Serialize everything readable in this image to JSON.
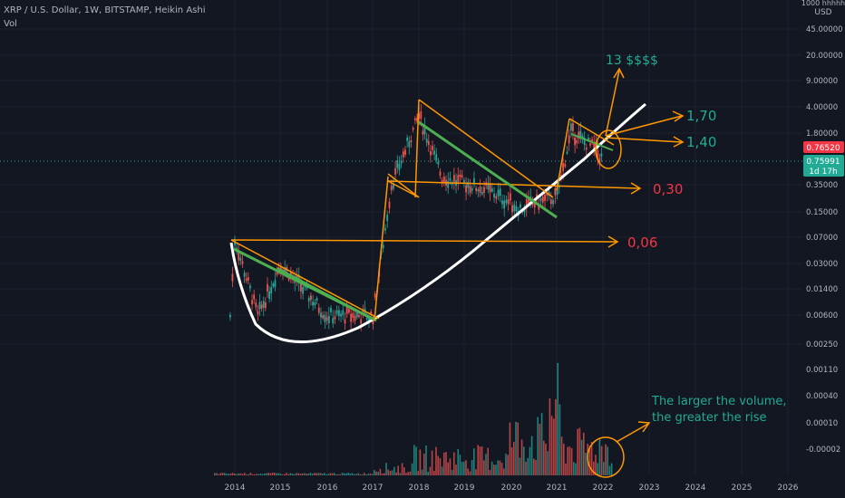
{
  "header": {
    "symbol_line": "XRP / U.S. Dollar, 1W, BITSTAMP, Heikin Ashi",
    "volume_label": "Vol"
  },
  "axis": {
    "unit_top": "1000 hhhhh",
    "unit": "USD",
    "price_ticks": [
      "45.00000",
      "20.00000",
      "9.00000",
      "4.00000",
      "1.80000",
      "0.35000",
      "0.15000",
      "0.07000",
      "0.03000",
      "0.01400",
      "0.00600",
      "0.00250"
    ],
    "volume_ticks": [
      "0.00110",
      "0.00040",
      "0.00010",
      "-0.00002"
    ],
    "year_ticks": [
      "2014",
      "2015",
      "2016",
      "2017",
      "2018",
      "2019",
      "2020",
      "2021",
      "2022",
      "2023",
      "2024",
      "2025",
      "2026"
    ]
  },
  "price_badges": {
    "last_price": "0.76520",
    "current_price": "0.75991",
    "countdown": "1d 17h"
  },
  "annotations": {
    "target_13": "13 $$$$",
    "level_170": "1,70",
    "level_140": "1,40",
    "level_030": "0,30",
    "level_006": "0,06",
    "volume_note_line1": "The larger the volume,",
    "volume_note_line2": "the greater the rise"
  },
  "colors": {
    "background": "#131722",
    "up": "#26a69a",
    "down": "#ef5350",
    "orange": "#ff9800",
    "green_line": "#4caf50",
    "annotation_green": "#22ab94",
    "annotation_red": "#f23645",
    "curve": "#ffffff"
  },
  "chart_data": {
    "type": "candlestick",
    "title": "XRP / U.S. Dollar, 1W, BITSTAMP, Heikin Ashi",
    "y_scale": "log",
    "y_unit": "USD",
    "x_range": [
      "2013",
      "2026"
    ],
    "y_range": [
      0.0015,
      70
    ],
    "last_price": 0.7652,
    "current_price": 0.75991,
    "horizontal_levels": [
      0.06,
      0.3,
      1.4
    ],
    "projected_targets": [
      13,
      1.7,
      1.4,
      0.3,
      0.06
    ],
    "series": [
      {
        "name": "",
        "approx_closes": [
          {
            "x": "2013.9",
            "y": 0.006
          },
          {
            "x": "2014.0",
            "y": 0.065
          },
          {
            "x": "2014.5",
            "y": 0.006
          },
          {
            "x": "2015.0",
            "y": 0.03
          },
          {
            "x": "2016.0",
            "y": 0.006
          },
          {
            "x": "2017.0",
            "y": 0.006
          },
          {
            "x": "2017.4",
            "y": 0.35
          },
          {
            "x": "2018.0",
            "y": 3.0
          },
          {
            "x": "2018.5",
            "y": 0.45
          },
          {
            "x": "2019.5",
            "y": 0.3
          },
          {
            "x": "2020.2",
            "y": 0.17
          },
          {
            "x": "2021.0",
            "y": 0.25
          },
          {
            "x": "2021.3",
            "y": 1.8
          },
          {
            "x": "2021.8",
            "y": 1.1
          },
          {
            "x": "2022.0",
            "y": 0.76
          }
        ]
      }
    ]
  }
}
